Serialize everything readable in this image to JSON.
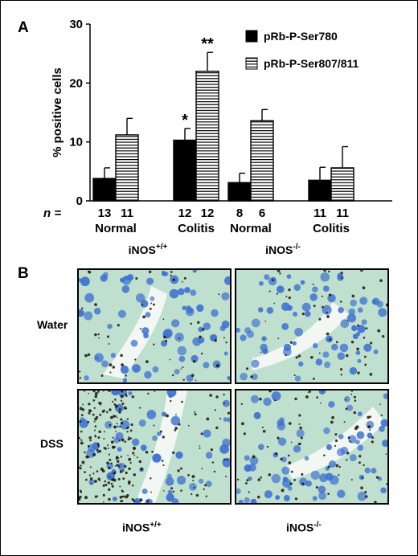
{
  "panel_a": {
    "letter": "A"
  },
  "panel_b": {
    "letter": "B",
    "row_labels": [
      "Water",
      "DSS"
    ],
    "column_labels": [
      {
        "base": "iNOS",
        "sup": "+/+"
      },
      {
        "base": "iNOS",
        "sup": "-/-"
      }
    ],
    "colors": {
      "background": "#bfe0cf",
      "nuclei": "#3d6fd0",
      "stain": "#1c1408"
    }
  },
  "chart_data": {
    "type": "bar",
    "title": "",
    "xlabel": "",
    "ylabel": "% positive cells",
    "ylim": [
      0,
      30
    ],
    "yticks": [
      0,
      10,
      20,
      30
    ],
    "grid": false,
    "legend_position": "top-right",
    "n_label": "n =",
    "groups": [
      {
        "label": "Normal",
        "genotype": "iNOS",
        "genotype_sup": "+/+",
        "n": [
          13,
          11
        ]
      },
      {
        "label": "Colitis",
        "genotype": "iNOS",
        "genotype_sup": "+/+",
        "n": [
          12,
          12
        ]
      },
      {
        "label": "Normal",
        "genotype": "iNOS",
        "genotype_sup": "-/-",
        "n": [
          8,
          6
        ]
      },
      {
        "label": "Colitis",
        "genotype": "iNOS",
        "genotype_sup": "-/-",
        "n": [
          11,
          11
        ]
      }
    ],
    "genotype_labels": [
      {
        "base": "iNOS",
        "sup": "+/+"
      },
      {
        "base": "iNOS",
        "sup": "-/-"
      }
    ],
    "series": [
      {
        "name": "pRb-P-Ser780",
        "fill": "solid-black",
        "values": [
          3.8,
          10.3,
          3.1,
          3.5
        ],
        "errors": [
          1.8,
          2.0,
          1.6,
          2.2
        ],
        "annotations": [
          "",
          "*",
          "",
          ""
        ]
      },
      {
        "name": "pRb-P-Ser807/811",
        "fill": "horizontal-stripes",
        "values": [
          11.2,
          22.0,
          13.6,
          5.6
        ],
        "errors": [
          2.8,
          3.2,
          1.9,
          3.6
        ],
        "annotations": [
          "",
          "**",
          "",
          ""
        ]
      }
    ]
  }
}
